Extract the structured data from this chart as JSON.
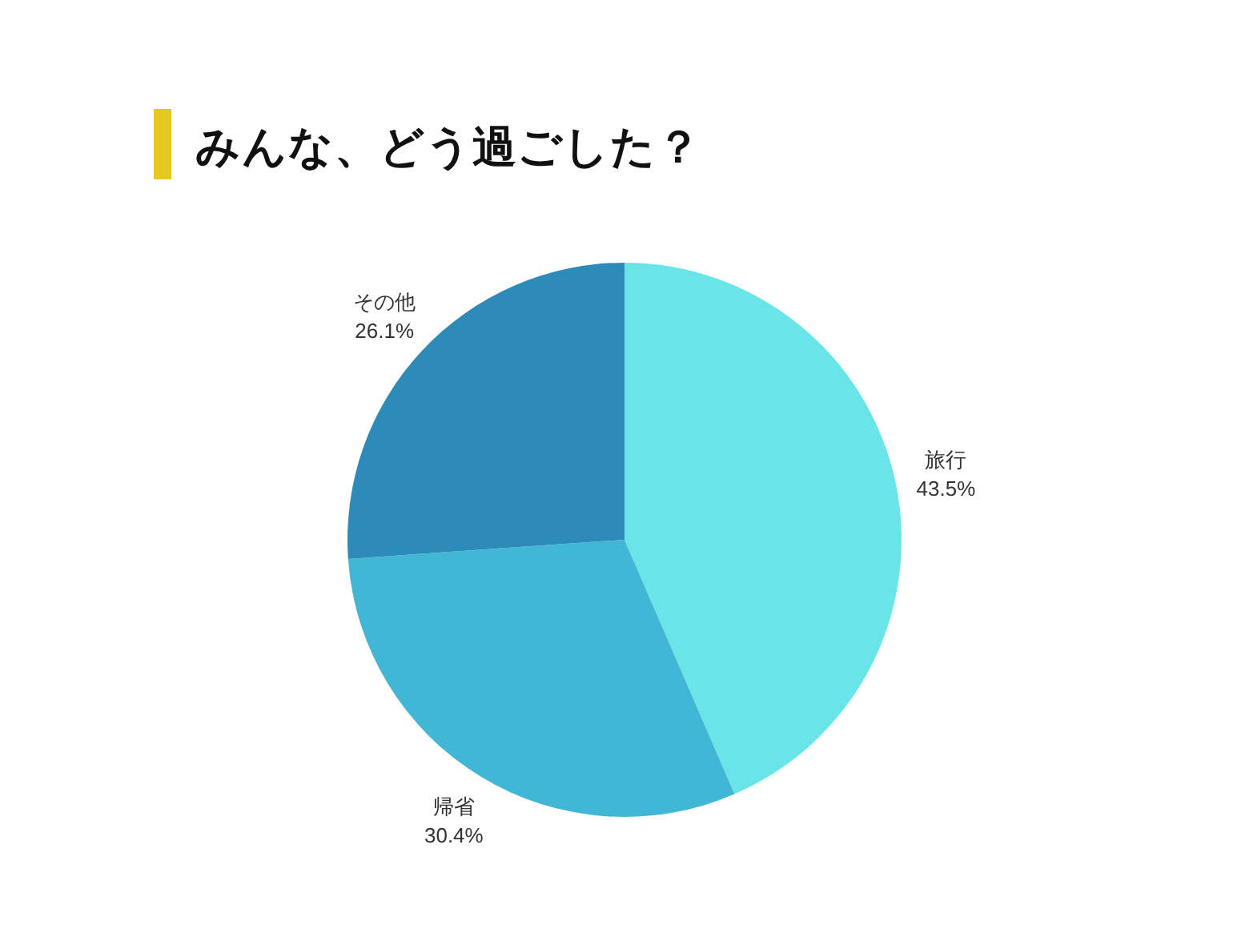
{
  "chart_data": {
    "type": "pie",
    "title": "みんな、どう過ごした？",
    "categories": [
      "旅行",
      "帰省",
      "その他"
    ],
    "values": [
      43.5,
      30.4,
      26.1
    ],
    "colors": [
      "#6ae4e6",
      "#42b7d5",
      "#2d8bba"
    ],
    "value_labels": [
      "43.5%",
      "30.4%",
      "26.1%"
    ]
  }
}
